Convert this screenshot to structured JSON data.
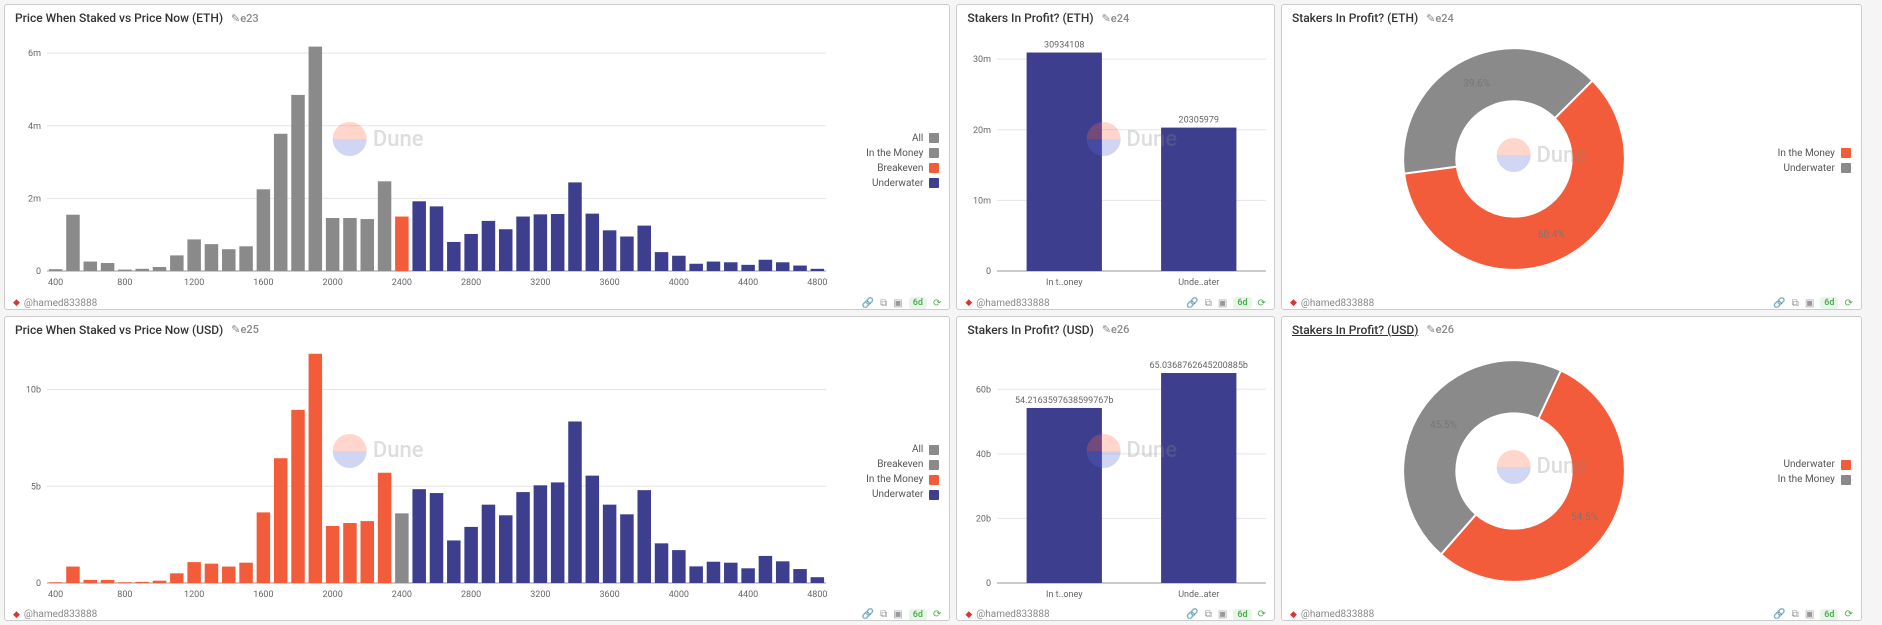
{
  "colors": {
    "grey": "#8a8a8a",
    "orange": "#f25c3b",
    "navy": "#3e3e8f",
    "grid": "#e5e5e5",
    "axis": "#999999",
    "text": "#666666",
    "panel_bg": "#ffffff",
    "page_bg": "#f5f5f5"
  },
  "watermark": {
    "text": "Dune"
  },
  "author": "@hamed833888",
  "age_badge": "6d",
  "footer_icons": [
    "link-icon",
    "copy-icon",
    "image-icon"
  ],
  "panels": {
    "hist_eth": {
      "title": "Price When Staked vs Price Now (ETH)",
      "edit_label": "e23",
      "type": "histogram",
      "x_ticks": [
        400,
        800,
        1200,
        1600,
        2000,
        2400,
        2800,
        3200,
        3600,
        4000,
        4400,
        4800
      ],
      "y_ticks": [
        0,
        2000000,
        4000000,
        6000000
      ],
      "y_tick_labels": [
        "0",
        "2m",
        "4m",
        "6m"
      ],
      "y_max": 6500000,
      "bar_width": 0.78,
      "legend": [
        {
          "label": "All",
          "color": "#8a8a8a"
        },
        {
          "label": "In the Money",
          "color": "#8a8a8a"
        },
        {
          "label": "Breakeven",
          "color": "#f25c3b"
        },
        {
          "label": "Underwater",
          "color": "#3e3e8f"
        }
      ],
      "bars": [
        {
          "x": 400,
          "v": 50000,
          "c": "grey"
        },
        {
          "x": 500,
          "v": 1550000,
          "c": "grey"
        },
        {
          "x": 600,
          "v": 260000,
          "c": "grey"
        },
        {
          "x": 700,
          "v": 220000,
          "c": "grey"
        },
        {
          "x": 800,
          "v": 40000,
          "c": "grey"
        },
        {
          "x": 900,
          "v": 60000,
          "c": "grey"
        },
        {
          "x": 1000,
          "v": 110000,
          "c": "grey"
        },
        {
          "x": 1100,
          "v": 430000,
          "c": "grey"
        },
        {
          "x": 1200,
          "v": 870000,
          "c": "grey"
        },
        {
          "x": 1300,
          "v": 740000,
          "c": "grey"
        },
        {
          "x": 1400,
          "v": 600000,
          "c": "grey"
        },
        {
          "x": 1500,
          "v": 680000,
          "c": "grey"
        },
        {
          "x": 1600,
          "v": 2250000,
          "c": "grey"
        },
        {
          "x": 1700,
          "v": 3780000,
          "c": "grey"
        },
        {
          "x": 1800,
          "v": 4850000,
          "c": "grey"
        },
        {
          "x": 1900,
          "v": 6180000,
          "c": "grey"
        },
        {
          "x": 2000,
          "v": 1460000,
          "c": "grey"
        },
        {
          "x": 2100,
          "v": 1460000,
          "c": "grey"
        },
        {
          "x": 2200,
          "v": 1430000,
          "c": "grey"
        },
        {
          "x": 2300,
          "v": 2470000,
          "c": "grey"
        },
        {
          "x": 2400,
          "v": 1500000,
          "c": "orange"
        },
        {
          "x": 2500,
          "v": 1920000,
          "c": "navy"
        },
        {
          "x": 2600,
          "v": 1780000,
          "c": "navy"
        },
        {
          "x": 2700,
          "v": 800000,
          "c": "navy"
        },
        {
          "x": 2800,
          "v": 1020000,
          "c": "navy"
        },
        {
          "x": 2900,
          "v": 1380000,
          "c": "navy"
        },
        {
          "x": 3000,
          "v": 1150000,
          "c": "navy"
        },
        {
          "x": 3100,
          "v": 1500000,
          "c": "navy"
        },
        {
          "x": 3200,
          "v": 1560000,
          "c": "navy"
        },
        {
          "x": 3300,
          "v": 1570000,
          "c": "navy"
        },
        {
          "x": 3400,
          "v": 2440000,
          "c": "navy"
        },
        {
          "x": 3500,
          "v": 1580000,
          "c": "navy"
        },
        {
          "x": 3600,
          "v": 1120000,
          "c": "navy"
        },
        {
          "x": 3700,
          "v": 950000,
          "c": "navy"
        },
        {
          "x": 3800,
          "v": 1250000,
          "c": "navy"
        },
        {
          "x": 3900,
          "v": 520000,
          "c": "navy"
        },
        {
          "x": 4000,
          "v": 420000,
          "c": "navy"
        },
        {
          "x": 4100,
          "v": 200000,
          "c": "navy"
        },
        {
          "x": 4200,
          "v": 260000,
          "c": "navy"
        },
        {
          "x": 4300,
          "v": 240000,
          "c": "navy"
        },
        {
          "x": 4400,
          "v": 170000,
          "c": "navy"
        },
        {
          "x": 4500,
          "v": 310000,
          "c": "navy"
        },
        {
          "x": 4600,
          "v": 240000,
          "c": "navy"
        },
        {
          "x": 4700,
          "v": 150000,
          "c": "navy"
        },
        {
          "x": 4800,
          "v": 60000,
          "c": "navy"
        }
      ]
    },
    "hist_usd": {
      "title": "Price When Staked vs Price Now (USD)",
      "edit_label": "e25",
      "type": "histogram",
      "x_ticks": [
        400,
        800,
        1200,
        1600,
        2000,
        2400,
        2800,
        3200,
        3600,
        4000,
        4400,
        4800
      ],
      "y_ticks": [
        0,
        5000000000,
        10000000000
      ],
      "y_tick_labels": [
        "0",
        "5b",
        "10b"
      ],
      "y_max": 12200000000,
      "bar_width": 0.78,
      "legend": [
        {
          "label": "All",
          "color": "#8a8a8a"
        },
        {
          "label": "Breakeven",
          "color": "#8a8a8a"
        },
        {
          "label": "In the Money",
          "color": "#f25c3b"
        },
        {
          "label": "Underwater",
          "color": "#3e3e8f"
        }
      ],
      "bars": [
        {
          "x": 400,
          "v": 40000000,
          "c": "orange"
        },
        {
          "x": 500,
          "v": 850000000,
          "c": "orange"
        },
        {
          "x": 600,
          "v": 160000000,
          "c": "orange"
        },
        {
          "x": 700,
          "v": 160000000,
          "c": "orange"
        },
        {
          "x": 800,
          "v": 40000000,
          "c": "orange"
        },
        {
          "x": 900,
          "v": 60000000,
          "c": "orange"
        },
        {
          "x": 1000,
          "v": 120000000,
          "c": "orange"
        },
        {
          "x": 1100,
          "v": 500000000,
          "c": "orange"
        },
        {
          "x": 1200,
          "v": 1080000000,
          "c": "orange"
        },
        {
          "x": 1300,
          "v": 1000000000,
          "c": "orange"
        },
        {
          "x": 1400,
          "v": 850000000,
          "c": "orange"
        },
        {
          "x": 1500,
          "v": 1050000000,
          "c": "orange"
        },
        {
          "x": 1600,
          "v": 3650000000,
          "c": "orange"
        },
        {
          "x": 1700,
          "v": 6450000000,
          "c": "orange"
        },
        {
          "x": 1800,
          "v": 8950000000,
          "c": "orange"
        },
        {
          "x": 1900,
          "v": 11850000000,
          "c": "orange"
        },
        {
          "x": 2000,
          "v": 2950000000,
          "c": "orange"
        },
        {
          "x": 2100,
          "v": 3100000000,
          "c": "orange"
        },
        {
          "x": 2200,
          "v": 3200000000,
          "c": "orange"
        },
        {
          "x": 2300,
          "v": 5700000000,
          "c": "orange"
        },
        {
          "x": 2400,
          "v": 3600000000,
          "c": "grey"
        },
        {
          "x": 2500,
          "v": 4850000000,
          "c": "navy"
        },
        {
          "x": 2600,
          "v": 4650000000,
          "c": "navy"
        },
        {
          "x": 2700,
          "v": 2200000000,
          "c": "navy"
        },
        {
          "x": 2800,
          "v": 2900000000,
          "c": "navy"
        },
        {
          "x": 2900,
          "v": 4050000000,
          "c": "navy"
        },
        {
          "x": 3000,
          "v": 3500000000,
          "c": "navy"
        },
        {
          "x": 3100,
          "v": 4700000000,
          "c": "navy"
        },
        {
          "x": 3200,
          "v": 5050000000,
          "c": "navy"
        },
        {
          "x": 3300,
          "v": 5200000000,
          "c": "navy"
        },
        {
          "x": 3400,
          "v": 8350000000,
          "c": "navy"
        },
        {
          "x": 3500,
          "v": 5550000000,
          "c": "navy"
        },
        {
          "x": 3600,
          "v": 4050000000,
          "c": "navy"
        },
        {
          "x": 3700,
          "v": 3550000000,
          "c": "navy"
        },
        {
          "x": 3800,
          "v": 4800000000,
          "c": "navy"
        },
        {
          "x": 3900,
          "v": 2050000000,
          "c": "navy"
        },
        {
          "x": 4000,
          "v": 1700000000,
          "c": "navy"
        },
        {
          "x": 4100,
          "v": 860000000,
          "c": "navy"
        },
        {
          "x": 4200,
          "v": 1100000000,
          "c": "navy"
        },
        {
          "x": 4300,
          "v": 1050000000,
          "c": "navy"
        },
        {
          "x": 4400,
          "v": 760000000,
          "c": "navy"
        },
        {
          "x": 4500,
          "v": 1400000000,
          "c": "navy"
        },
        {
          "x": 4600,
          "v": 1120000000,
          "c": "navy"
        },
        {
          "x": 4700,
          "v": 720000000,
          "c": "navy"
        },
        {
          "x": 4800,
          "v": 300000000,
          "c": "navy"
        }
      ]
    },
    "bar_eth": {
      "title": "Stakers In Profit? (ETH)",
      "edit_label": "e24",
      "type": "bar",
      "y_ticks": [
        0,
        10000000,
        20000000,
        30000000
      ],
      "y_tick_labels": [
        "0",
        "10m",
        "20m",
        "30m"
      ],
      "y_max": 32000000,
      "categories": [
        "In t..oney",
        "Unde..ater"
      ],
      "values": [
        30934108,
        20305979
      ],
      "value_labels": [
        "30934108",
        "20305979"
      ],
      "bar_color": "#3e3e8f",
      "bar_width": 0.56
    },
    "bar_usd": {
      "title": "Stakers In Profit? (USD)",
      "edit_label": "e26",
      "type": "bar",
      "y_ticks": [
        0,
        20000000000,
        40000000000,
        60000000000
      ],
      "y_tick_labels": [
        "0",
        "20b",
        "40b",
        "60b"
      ],
      "y_max": 70000000000,
      "categories": [
        "In t..oney",
        "Unde..ater"
      ],
      "values": [
        54216359763.85998,
        65036876264.52009
      ],
      "value_labels": [
        "54.2163597638599767b",
        "65.0368762645200885b"
      ],
      "bar_color": "#3e3e8f",
      "bar_width": 0.56
    },
    "donut_eth": {
      "title": "Stakers In Profit? (ETH)",
      "edit_label": "e24",
      "type": "donut",
      "underline_title": false,
      "slices": [
        {
          "label": "In the Money",
          "value": 60.4,
          "color": "#f25c3b",
          "pct_label": "60.4%"
        },
        {
          "label": "Underwater",
          "value": 39.6,
          "color": "#8a8a8a",
          "pct_label": "39.6%"
        }
      ],
      "start_angle_deg": -45,
      "inner_ratio": 0.52,
      "legend": [
        {
          "label": "In the Money",
          "color": "#f25c3b"
        },
        {
          "label": "Underwater",
          "color": "#8a8a8a"
        }
      ]
    },
    "donut_usd": {
      "title": "Stakers In Profit? (USD)",
      "edit_label": "e26",
      "type": "donut",
      "underline_title": true,
      "slices": [
        {
          "label": "Underwater",
          "value": 54.5,
          "color": "#f25c3b",
          "pct_label": "54.5%"
        },
        {
          "label": "In the Money",
          "value": 45.5,
          "color": "#8a8a8a",
          "pct_label": "45.5%"
        }
      ],
      "start_angle_deg": -65,
      "inner_ratio": 0.52,
      "legend": [
        {
          "label": "Underwater",
          "color": "#f25c3b"
        },
        {
          "label": "In the Money",
          "color": "#8a8a8a"
        }
      ]
    }
  }
}
